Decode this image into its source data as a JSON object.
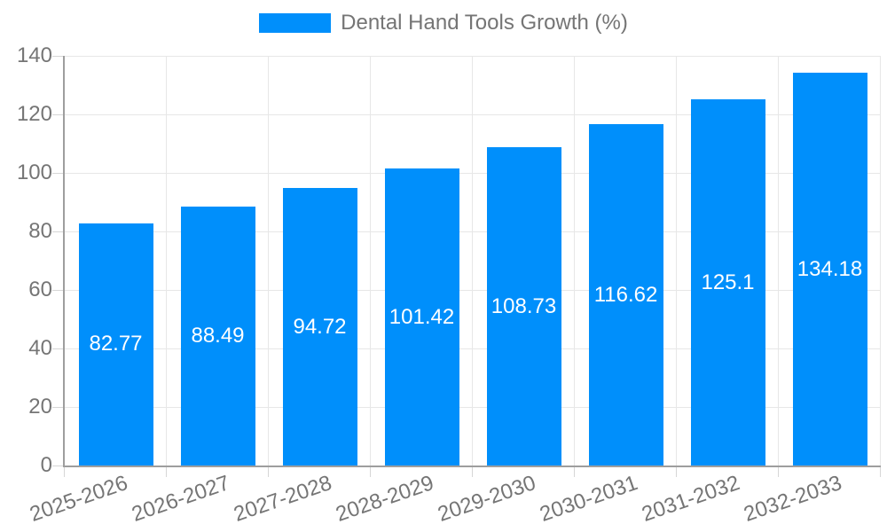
{
  "chart_data": {
    "type": "bar",
    "title": "Dental Hand Tools Growth (%)",
    "categories": [
      "2025-2026",
      "2026-2027",
      "2027-2028",
      "2028-2029",
      "2029-2030",
      "2030-2031",
      "2031-2032",
      "2032-2033"
    ],
    "values": [
      82.77,
      88.49,
      94.72,
      101.42,
      108.73,
      116.62,
      125.1,
      134.18
    ],
    "value_labels": [
      "82.77",
      "88.49",
      "94.72",
      "101.42",
      "108.73",
      "116.62",
      "125.1",
      "134.18"
    ],
    "xlabel": "",
    "ylabel": "",
    "ylim": [
      0,
      140
    ],
    "yticks": [
      0,
      20,
      40,
      60,
      80,
      100,
      120,
      140
    ],
    "grid": true,
    "legend_position": "top",
    "x_label_rotation_deg": -19,
    "colors": {
      "bar": "#008FFB",
      "bar_value_label": "#ffffff",
      "axis_text": "#757575",
      "gridline": "#e7e7e7",
      "axis_line": "#9e9e9e",
      "tick": "#d6d6d6",
      "background": "#ffffff"
    }
  },
  "legend": {
    "label": "Dental Hand Tools Growth (%)"
  }
}
